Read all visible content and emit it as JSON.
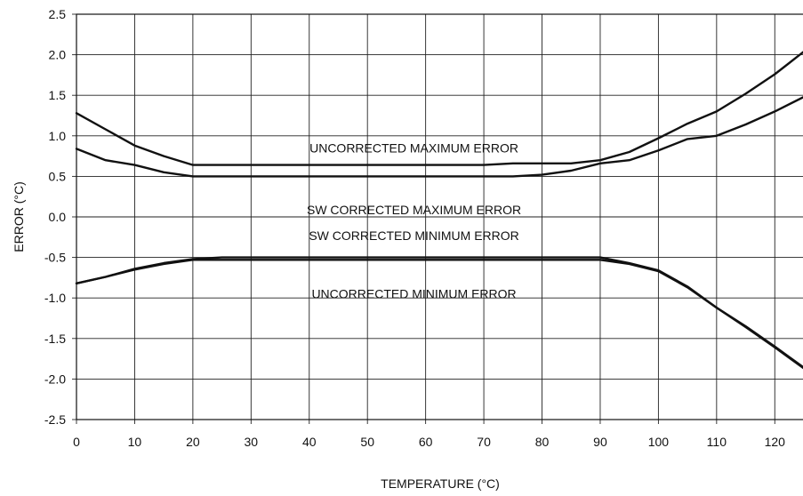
{
  "chart_data": {
    "type": "line",
    "title": "",
    "xlabel": "TEMPERATURE (°C)",
    "ylabel": "ERROR (°C)",
    "xlim": [
      0,
      125
    ],
    "ylim": [
      -2.5,
      2.5
    ],
    "grid": true,
    "x_ticks": [
      "0",
      "10",
      "20",
      "30",
      "40",
      "50",
      "60",
      "70",
      "80",
      "90",
      "100",
      "110",
      "120"
    ],
    "y_ticks": [
      "2.5",
      "2.0",
      "1.5",
      "1.0",
      "0.5",
      "0.0",
      "-0.5",
      "-1.0",
      "-1.5",
      "-2.0",
      "-2.5"
    ],
    "series": [
      {
        "x": [
          0,
          5,
          10,
          15,
          20,
          25,
          30,
          40,
          50,
          60,
          70,
          75,
          80,
          85,
          90,
          95,
          100,
          105,
          110,
          115,
          120,
          125
        ],
        "values": [
          1.28,
          1.08,
          0.88,
          0.75,
          0.64,
          0.64,
          0.64,
          0.64,
          0.64,
          0.64,
          0.64,
          0.66,
          0.66,
          0.66,
          0.7,
          0.8,
          0.97,
          1.15,
          1.3,
          1.52,
          1.76,
          2.04
        ]
      },
      {
        "x": [
          0,
          5,
          10,
          15,
          20,
          25,
          30,
          40,
          50,
          60,
          70,
          75,
          80,
          85,
          90,
          95,
          100,
          105,
          110,
          115,
          120,
          125
        ],
        "values": [
          0.84,
          0.7,
          0.64,
          0.55,
          0.5,
          0.5,
          0.5,
          0.5,
          0.5,
          0.5,
          0.5,
          0.5,
          0.52,
          0.57,
          0.66,
          0.7,
          0.82,
          0.96,
          1.0,
          1.14,
          1.3,
          1.48
        ]
      },
      {
        "x": [
          0,
          5,
          10,
          15,
          20,
          25,
          30,
          40,
          50,
          60,
          70,
          80,
          90,
          95,
          100,
          105,
          110,
          115,
          120,
          125
        ],
        "values": [
          -0.82,
          -0.74,
          -0.64,
          -0.57,
          -0.52,
          -0.5,
          -0.5,
          -0.5,
          -0.5,
          -0.5,
          -0.5,
          -0.5,
          -0.5,
          -0.57,
          -0.66,
          -0.86,
          -1.12,
          -1.35,
          -1.6,
          -1.86
        ]
      },
      {
        "x": [
          0,
          5,
          10,
          15,
          20,
          25,
          30,
          40,
          50,
          60,
          70,
          80,
          90,
          95,
          100,
          105,
          110,
          115,
          120,
          125
        ],
        "values": [
          -0.82,
          -0.74,
          -0.65,
          -0.58,
          -0.53,
          -0.53,
          -0.53,
          -0.53,
          -0.53,
          -0.53,
          -0.53,
          -0.53,
          -0.53,
          -0.58,
          -0.67,
          -0.87,
          -1.12,
          -1.36,
          -1.61,
          -1.87
        ]
      }
    ],
    "annotations": [
      {
        "text": "UNCORRECTED MAXIMUM ERROR",
        "x": 58,
        "y": 0.85
      },
      {
        "text": "SW CORRECTED MAXIMUM ERROR",
        "x": 58,
        "y": 0.09
      },
      {
        "text": "SW CORRECTED MINIMUM ERROR",
        "x": 58,
        "y": -0.23
      },
      {
        "text": "UNCORRECTED MINIMUM ERROR",
        "x": 58,
        "y": -0.95
      }
    ]
  }
}
